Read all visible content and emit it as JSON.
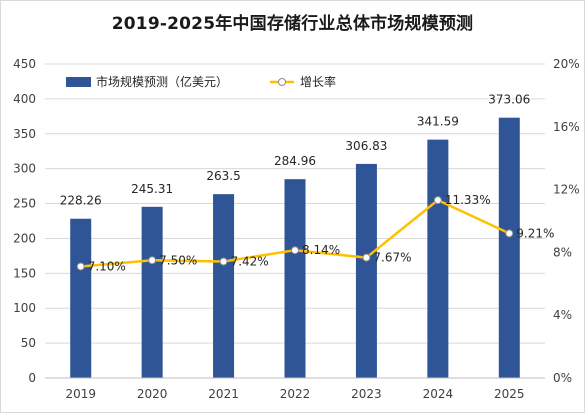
{
  "chart_data": {
    "type": "bar",
    "title": "2019-2025年中国存储行业总体市场规模预测",
    "categories": [
      "2019",
      "2020",
      "2021",
      "2022",
      "2023",
      "2024",
      "2025"
    ],
    "series": [
      {
        "name": "市场规模预测（亿美元）",
        "type": "bar",
        "axis": "left",
        "color": "#2f5597",
        "values": [
          228.26,
          245.31,
          263.5,
          284.96,
          306.83,
          341.59,
          373.06
        ],
        "labels": [
          "228.26",
          "245.31",
          "263.5",
          "284.96",
          "306.83",
          "341.59",
          "373.06"
        ]
      },
      {
        "name": "增长率",
        "type": "line",
        "axis": "right",
        "color": "#ffc000",
        "values": [
          7.1,
          7.5,
          7.42,
          8.14,
          7.67,
          11.33,
          9.21
        ],
        "labels": [
          "7.10%",
          "7.50%",
          "7.42%",
          "8.14%",
          "7.67%",
          "11.33%",
          "9.21%"
        ]
      }
    ],
    "y_left": {
      "min": 0,
      "max": 450,
      "ticks": [
        "0",
        "50",
        "100",
        "150",
        "200",
        "250",
        "300",
        "350",
        "400",
        "450"
      ]
    },
    "y_right": {
      "min": 0,
      "max": 20,
      "unit": "%",
      "ticks": [
        "0%",
        "4%",
        "8%",
        "12%",
        "16%",
        "20%"
      ]
    },
    "grid": true,
    "legend_position": "top-left"
  }
}
